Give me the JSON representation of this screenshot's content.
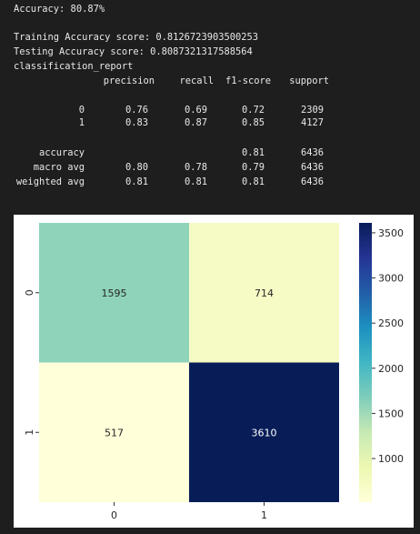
{
  "output": {
    "accuracy_line": "Accuracy: 80.87%",
    "training_line": "Training Accuracy score: 0.8126723903500253",
    "testing_line": "Testing Accuracy score: 0.8087321317588564",
    "report_title": "classification_report"
  },
  "report": {
    "headers": [
      "precision",
      "recall",
      "f1-score",
      "support"
    ],
    "class_rows": [
      {
        "label": "0",
        "precision": "0.76",
        "recall": "0.69",
        "f1": "0.72",
        "support": "2309"
      },
      {
        "label": "1",
        "precision": "0.83",
        "recall": "0.87",
        "f1": "0.85",
        "support": "4127"
      }
    ],
    "accuracy_row": {
      "label": "accuracy",
      "f1": "0.81",
      "support": "6436"
    },
    "avg_rows": [
      {
        "label": "macro avg",
        "precision": "0.80",
        "recall": "0.78",
        "f1": "0.79",
        "support": "6436"
      },
      {
        "label": "weighted avg",
        "precision": "0.81",
        "recall": "0.81",
        "f1": "0.81",
        "support": "6436"
      }
    ]
  },
  "chart_data": {
    "type": "heatmap",
    "x_labels": [
      "0",
      "1"
    ],
    "y_labels": [
      "0",
      "1"
    ],
    "matrix": [
      [
        1595,
        714
      ],
      [
        517,
        3610
      ]
    ],
    "annotations": [
      [
        "1595",
        "714"
      ],
      [
        "517",
        "3610"
      ]
    ],
    "colormap": "YlGnBu",
    "colorbar": {
      "min": 517,
      "max": 3610,
      "ticks": [
        "1000",
        "1500",
        "2000",
        "2500",
        "3000",
        "3500"
      ]
    },
    "title": "",
    "xlabel": "",
    "ylabel": ""
  }
}
